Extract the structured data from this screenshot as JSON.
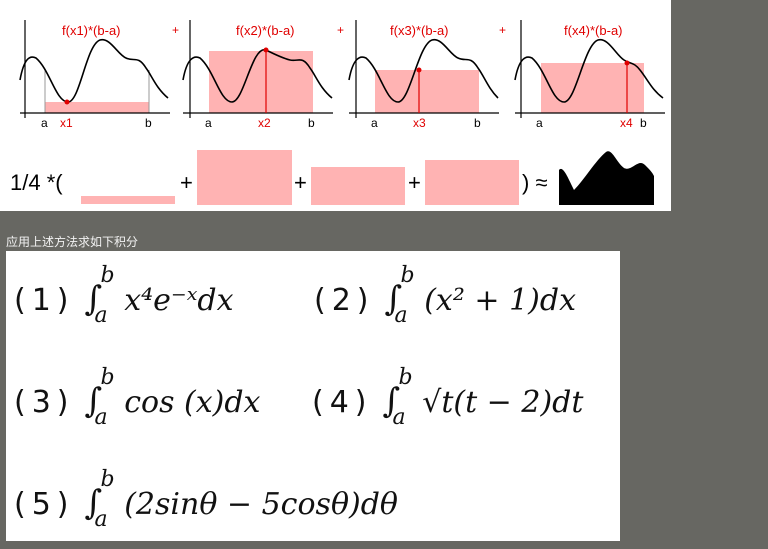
{
  "diagram": {
    "panels": [
      {
        "label": "f(x1)*(b-a)",
        "point": "x1",
        "left": "a",
        "right": "b"
      },
      {
        "label": "f(x2)*(b-a)",
        "point": "x2",
        "left": "a",
        "right": "b"
      },
      {
        "label": "f(x3)*(b-a)",
        "point": "x3",
        "left": "a",
        "right": "b"
      },
      {
        "label": "f(x4)*(b-a)",
        "point": "x4",
        "left": "a",
        "right": "b"
      }
    ],
    "plus": "+",
    "formula_open": "1/4 *(",
    "formula_close": ") ≈",
    "colors": {
      "rect": "#ffb3b3",
      "accent": "#e00000",
      "curve": "#000000"
    }
  },
  "caption": "应用上述方法求如下积分",
  "problems": [
    {
      "num": "(1)",
      "lower": "a",
      "upper": "b",
      "integrand": "x⁴e⁻ˣdx"
    },
    {
      "num": "(2)",
      "lower": "a",
      "upper": "b",
      "integrand": "(x² + 1)dx"
    },
    {
      "num": "(3)",
      "lower": "a",
      "upper": "b",
      "integrand": "cos (x)dx"
    },
    {
      "num": "(4)",
      "lower": "a",
      "upper": "b",
      "integrand": "√t(t − 2)dt"
    },
    {
      "num": "(5)",
      "lower": "a",
      "upper": "b",
      "integrand": "(2sinθ − 5cosθ)dθ"
    }
  ]
}
